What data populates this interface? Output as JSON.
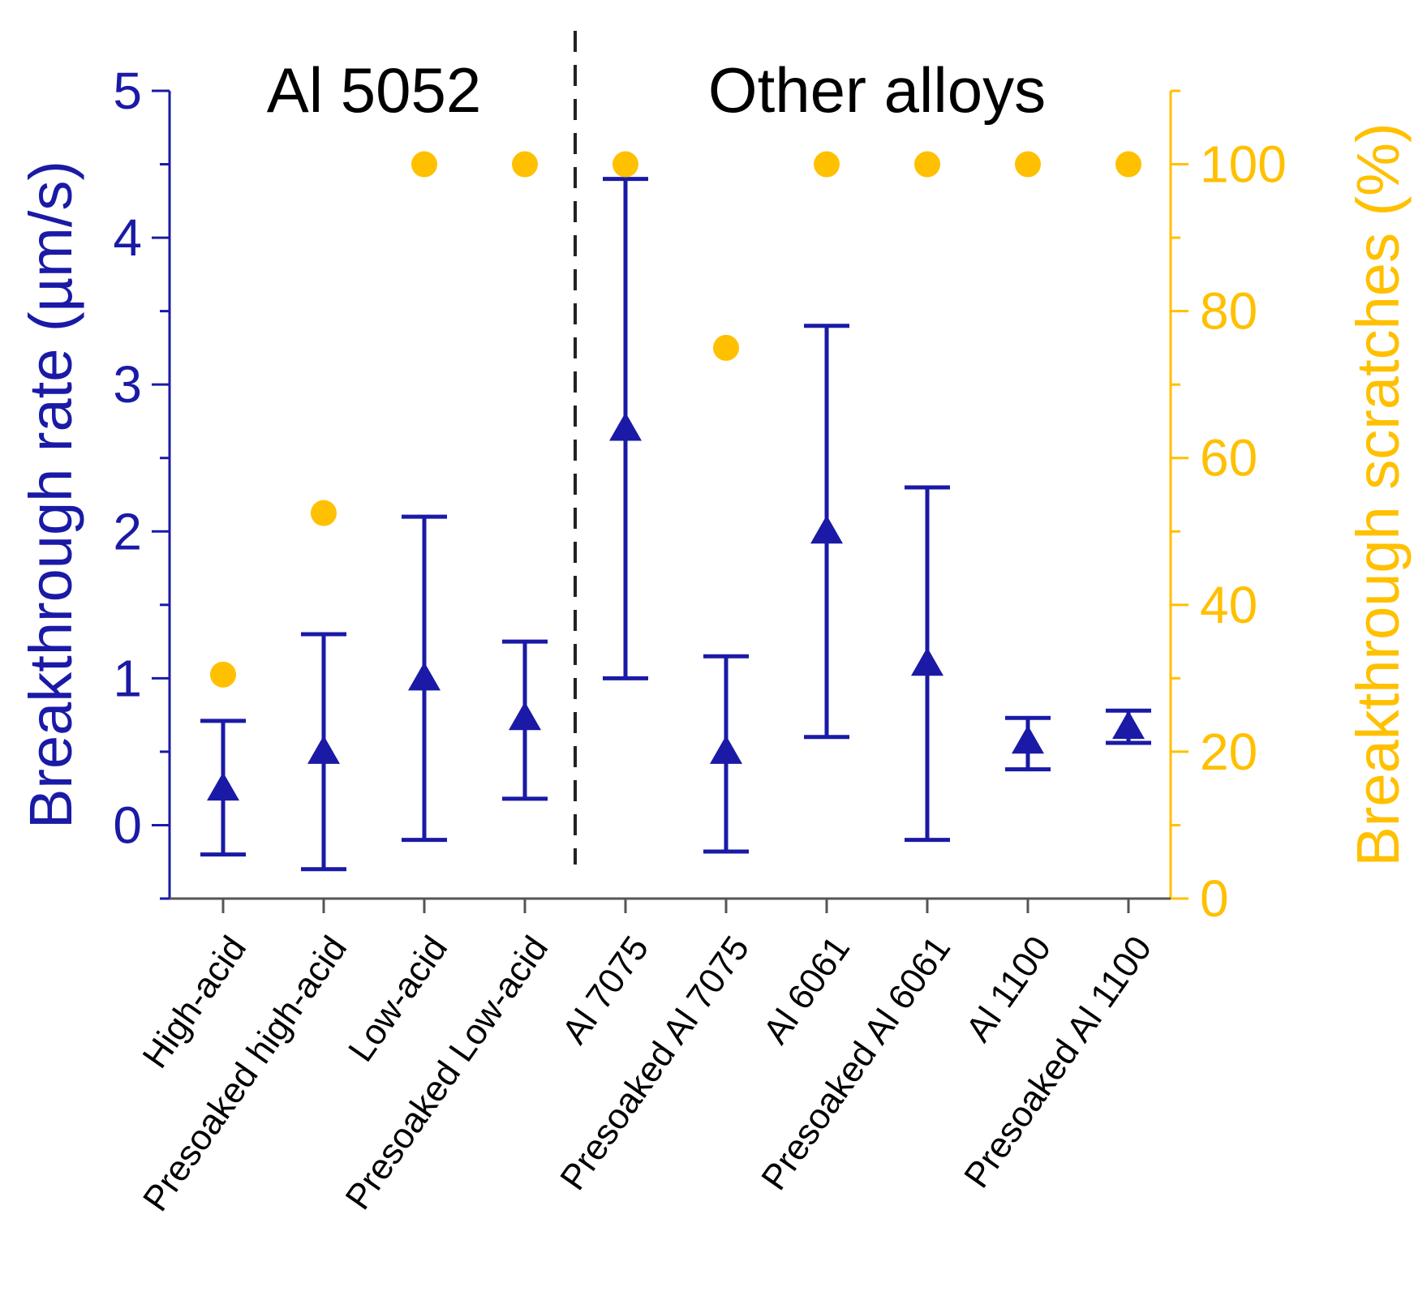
{
  "chart_data": {
    "type": "scatter",
    "title": "",
    "groups": [
      {
        "label": "Al 5052",
        "categories": [
          0,
          1,
          2,
          3
        ]
      },
      {
        "label": "Other alloys",
        "categories": [
          4,
          5,
          6,
          7,
          8,
          9
        ]
      }
    ],
    "categories": [
      "High-acid",
      "Presoaked high-acid",
      "Low-acid",
      "Presoaked Low-acid",
      "Al 7075",
      "Presoaked Al 7075",
      "Al 6061",
      "Presoaked Al 6061",
      "Al 1100",
      "Presoaked Al 1100"
    ],
    "left_axis": {
      "label": "Breakthrough rate (µm/s)",
      "ylim": [
        -0.5,
        5
      ],
      "ticks": [
        "0",
        "1",
        "2",
        "3",
        "4",
        "5"
      ],
      "color": "#1a1aa6"
    },
    "right_axis": {
      "label": "Breakthrough scratches (%)",
      "ylim": [
        0,
        110
      ],
      "ticks": [
        "0",
        "20",
        "40",
        "60",
        "80",
        "100"
      ],
      "color": "#ffc000"
    },
    "series": [
      {
        "axis": "left",
        "marker": "triangle",
        "color": "#1a1aa6",
        "values": [
          0.25,
          0.5,
          1.0,
          0.73,
          2.7,
          0.5,
          2.0,
          1.1,
          0.57,
          0.67
        ],
        "error_low": [
          -0.2,
          -0.3,
          -0.1,
          0.18,
          1.0,
          -0.18,
          0.6,
          -0.1,
          0.38,
          0.56
        ],
        "error_high": [
          0.71,
          1.3,
          2.1,
          1.25,
          4.4,
          1.15,
          3.4,
          2.3,
          0.73,
          0.78
        ]
      },
      {
        "axis": "right",
        "marker": "circle",
        "color": "#ffc000",
        "values": [
          30.5,
          52.5,
          100,
          100,
          100,
          75,
          100,
          100,
          100,
          100
        ]
      }
    ],
    "divider_after_category": 3,
    "grid": false,
    "legend": "none"
  }
}
